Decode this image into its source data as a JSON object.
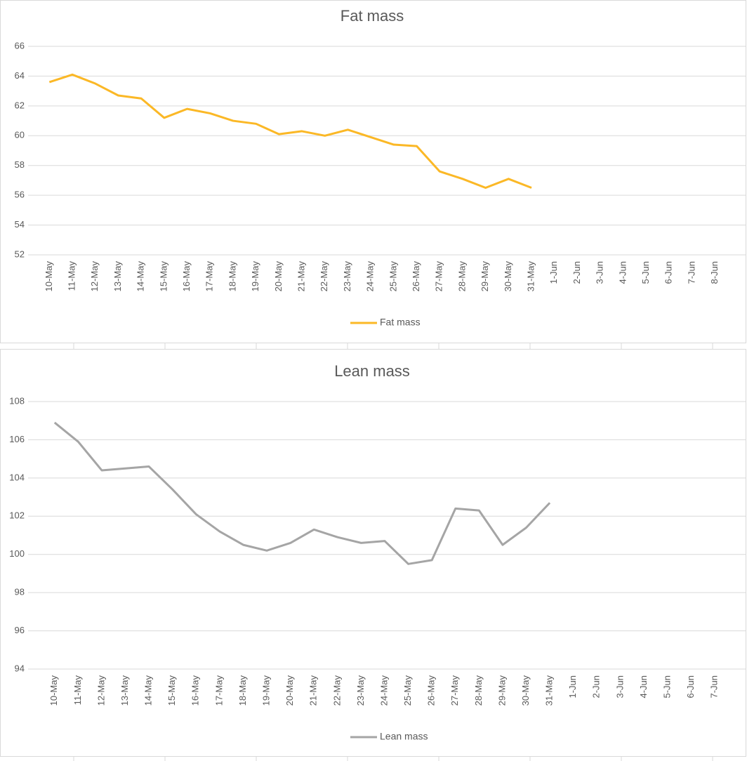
{
  "chart_data": [
    {
      "type": "line",
      "title": "Fat mass",
      "categories": [
        "10-May",
        "11-May",
        "12-May",
        "13-May",
        "14-May",
        "15-May",
        "16-May",
        "17-May",
        "18-May",
        "19-May",
        "20-May",
        "21-May",
        "22-May",
        "23-May",
        "24-May",
        "25-May",
        "26-May",
        "27-May",
        "28-May",
        "29-May",
        "30-May",
        "31-May",
        "1-Jun",
        "2-Jun",
        "3-Jun",
        "4-Jun",
        "5-Jun",
        "6-Jun",
        "7-Jun",
        "8-Jun"
      ],
      "series": [
        {
          "name": "Fat mass",
          "color": "#fbb826",
          "values": [
            63.6,
            64.1,
            63.5,
            62.7,
            62.5,
            61.2,
            61.8,
            61.5,
            61.0,
            60.8,
            60.1,
            60.3,
            60.0,
            60.4,
            59.9,
            59.4,
            59.3,
            57.6,
            57.1,
            56.5,
            57.1,
            56.5,
            null,
            null,
            null,
            null,
            null,
            null,
            null,
            null
          ]
        }
      ],
      "ylim": [
        52,
        66
      ],
      "yticks": [
        52,
        54,
        56,
        58,
        60,
        62,
        64,
        66
      ],
      "grid": true,
      "legend": "bottom"
    },
    {
      "type": "line",
      "title": "Lean mass",
      "categories": [
        "10-May",
        "11-May",
        "12-May",
        "13-May",
        "14-May",
        "15-May",
        "16-May",
        "17-May",
        "18-May",
        "19-May",
        "20-May",
        "21-May",
        "22-May",
        "23-May",
        "24-May",
        "25-May",
        "26-May",
        "27-May",
        "28-May",
        "29-May",
        "30-May",
        "31-May",
        "1-Jun",
        "2-Jun",
        "3-Jun",
        "4-Jun",
        "5-Jun",
        "6-Jun",
        "7-Jun"
      ],
      "series": [
        {
          "name": "Lean mass",
          "color": "#a5a5a5",
          "values": [
            106.9,
            105.9,
            104.4,
            104.5,
            104.6,
            103.4,
            102.1,
            101.2,
            100.5,
            100.2,
            100.6,
            101.3,
            100.9,
            100.6,
            100.7,
            99.5,
            99.7,
            102.4,
            102.3,
            100.5,
            101.4,
            102.7,
            null,
            null,
            null,
            null,
            null,
            null,
            null
          ]
        }
      ],
      "ylim": [
        94,
        108
      ],
      "yticks": [
        94,
        96,
        98,
        100,
        102,
        104,
        106,
        108
      ],
      "grid": true,
      "legend": "bottom"
    }
  ]
}
